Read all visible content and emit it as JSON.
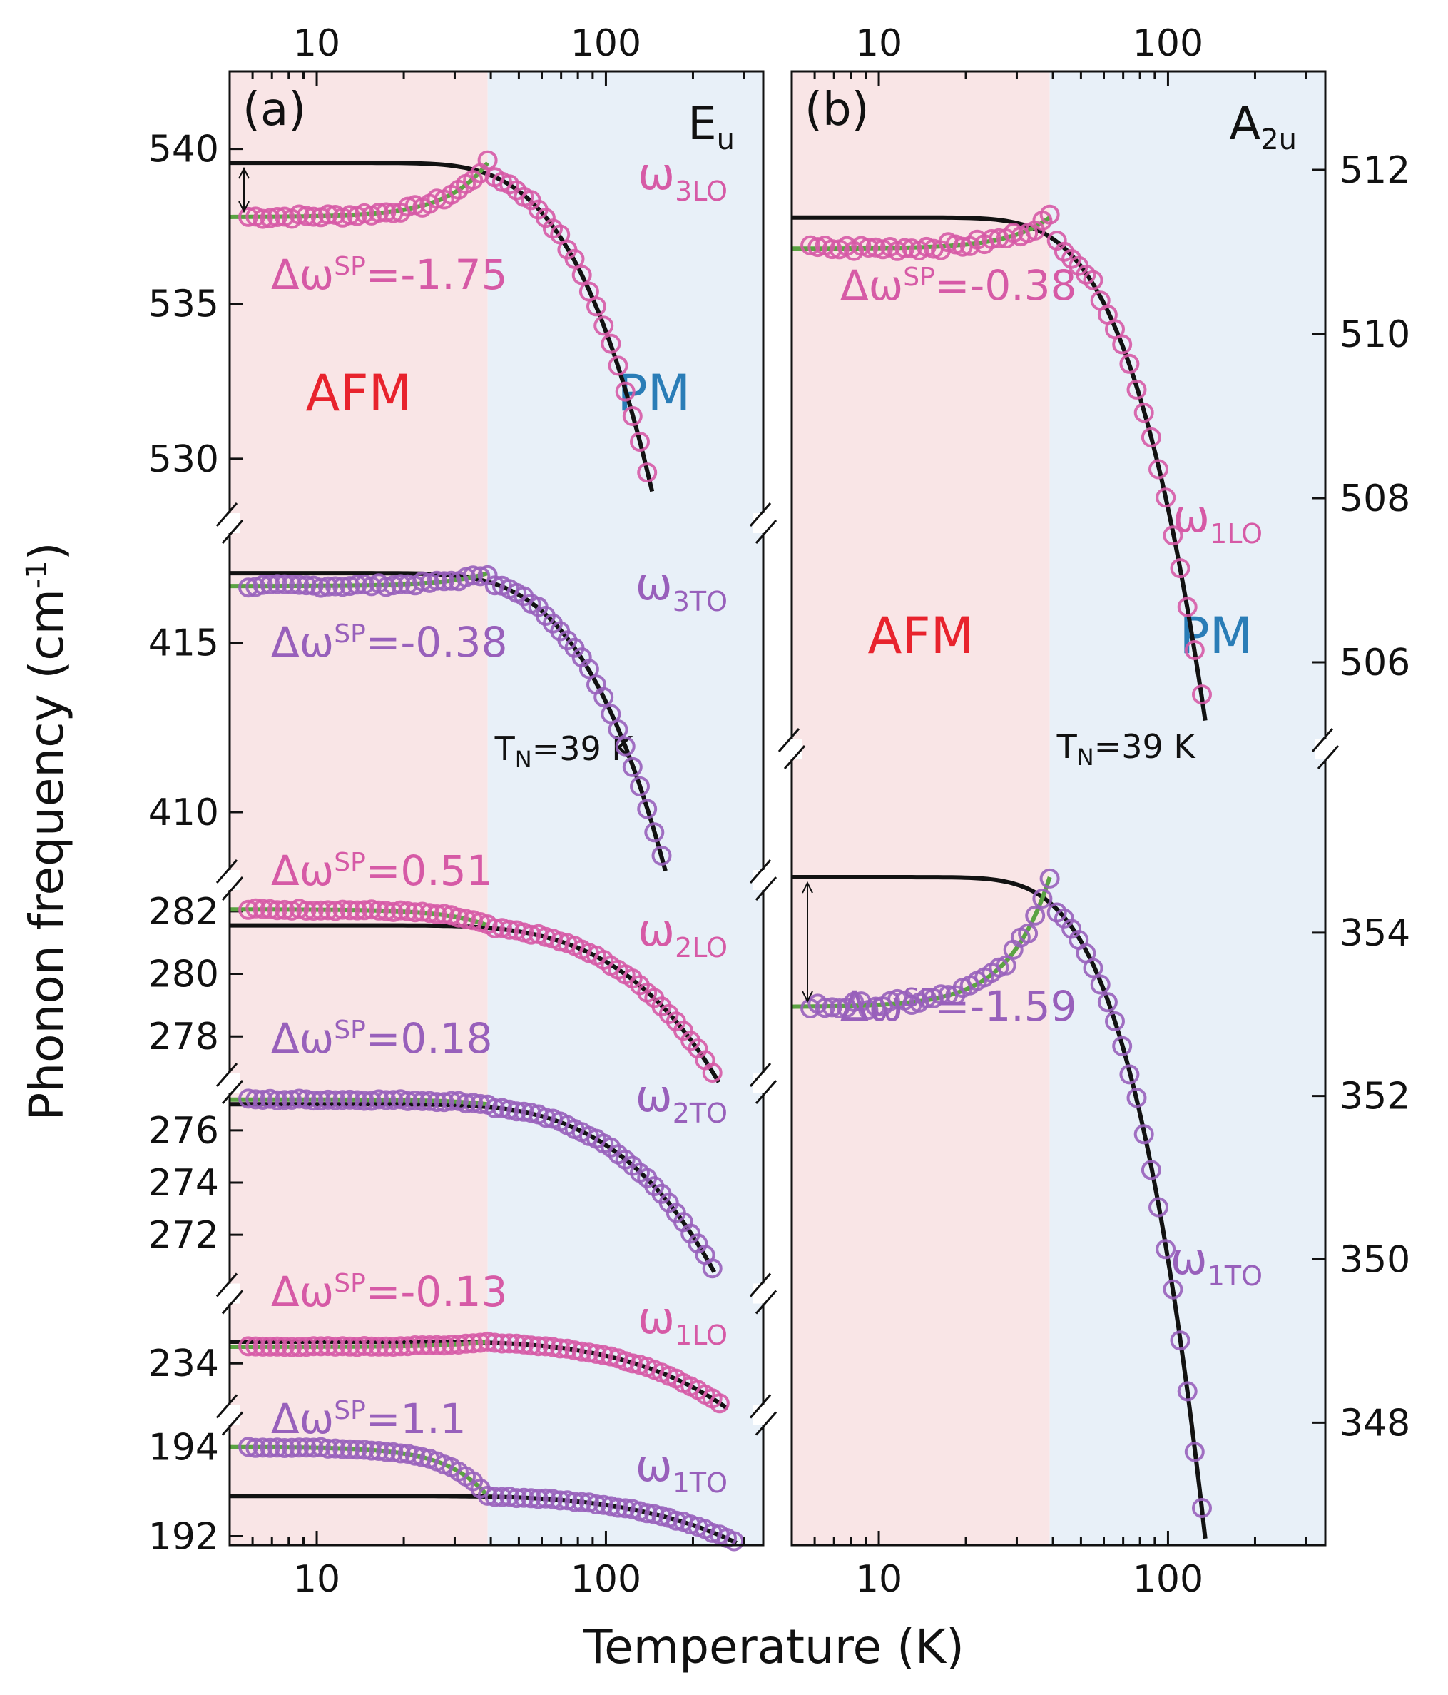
{
  "chart_data": {
    "type": "scatter",
    "xlabel": "Temperature (K)",
    "ylabel": "Phonon frequency (cm",
    "ylabel_superscript": "-1",
    "ylabel_close": ")",
    "xscale": "log",
    "xlim": [
      5,
      350
    ],
    "xticks": [
      10,
      100
    ],
    "xtick_labels": [
      "10",
      "100"
    ],
    "transition": {
      "label": "T",
      "sub": "N",
      "value": "=39 K",
      "temperature": 39
    },
    "colors": {
      "afm_region": "#f9e5e6",
      "pm_region": "#e8f0f8",
      "afm_text": "#e8232d",
      "pm_text": "#2a7db7",
      "LO": "#d65aa6",
      "TO": "#9860bb",
      "fit": "#121212",
      "sp_fit": "#5ba343"
    },
    "panels": [
      {
        "label": "(a)",
        "symmetry": "E",
        "symmetry_sub": "u",
        "afm_label": "AFM",
        "pm_label": "PM",
        "modes": [
          {
            "name": "ω",
            "sub": "3LO",
            "kind": "LO",
            "ylim": [
              528.5,
              542.5
            ],
            "yticks": [
              530,
              535,
              540
            ],
            "omega0": 539.55,
            "omega_afm": 537.8,
            "C": 21.5,
            "delta_label": "Δω",
            "delta_sup": "SP",
            "delta_value": "=-1.75"
          },
          {
            "name": "ω",
            "sub": "3TO",
            "kind": "TO",
            "ylim": [
              408,
              418
            ],
            "yticks": [
              410,
              415
            ],
            "omega0": 417.05,
            "omega_afm": 416.67,
            "C": 15.0,
            "delta_label": "Δω",
            "delta_sup": "SP",
            "delta_value": "=-0.38"
          },
          {
            "name": "ω",
            "sub": "2LO",
            "kind": "LO",
            "ylim": [
              276.5,
              283.0
            ],
            "yticks": [
              278,
              280,
              282
            ],
            "omega0": 281.55,
            "omega_afm": 282.06,
            "C": 4.6,
            "delta_label": "Δω",
            "delta_sup": "SP",
            "delta_value": "=0.51"
          },
          {
            "name": "ω",
            "sub": "2TO",
            "kind": "TO",
            "ylim": [
              270.5,
              277.8
            ],
            "yticks": [
              272,
              274,
              276
            ],
            "omega0": 277.0,
            "omega_afm": 277.18,
            "C": 6.2,
            "delta_label": "Δω",
            "delta_sup": "SP",
            "delta_value": "=0.18"
          },
          {
            "name": "ω",
            "sub": "1LO",
            "kind": "LO",
            "ylim": [
              232.8,
              235.3
            ],
            "yticks": [
              234
            ],
            "omega0": 234.56,
            "omega_afm": 234.43,
            "C": 1.45,
            "delta_label": "Δω",
            "delta_sup": "SP",
            "delta_value": "=-0.13"
          },
          {
            "name": "ω",
            "sub": "1TO",
            "kind": "TO",
            "ylim": [
              191.8,
              194.6
            ],
            "yticks": [
              192,
              194
            ],
            "omega0": 192.9,
            "omega_afm": 194.0,
            "C": 0.8,
            "delta_label": "Δω",
            "delta_sup": "SP",
            "delta_value": "=1.1"
          }
        ]
      },
      {
        "label": "(b)",
        "symmetry": "A",
        "symmetry_sub": "2u",
        "afm_label": "AFM",
        "pm_label": "PM",
        "modes": [
          {
            "name": "ω",
            "sub": "1LO",
            "kind": "LO",
            "ylim": [
              505.2,
              513.2
            ],
            "yticks": [
              506,
              508,
              510,
              512
            ],
            "omega0": 511.42,
            "omega_afm": 511.04,
            "C": 14.0,
            "delta_label": "Δω",
            "delta_sup": "SP",
            "delta_value": "=-0.38"
          },
          {
            "name": "ω",
            "sub": "1TO",
            "kind": "TO",
            "ylim": [
              346.5,
              356.0
            ],
            "yticks": [
              348,
              350,
              352,
              354
            ],
            "omega0": 354.68,
            "omega_afm": 353.09,
            "C": 18.5,
            "delta_label": "Δω",
            "delta_sup": "SP",
            "delta_value": "=-1.59"
          }
        ]
      }
    ]
  }
}
